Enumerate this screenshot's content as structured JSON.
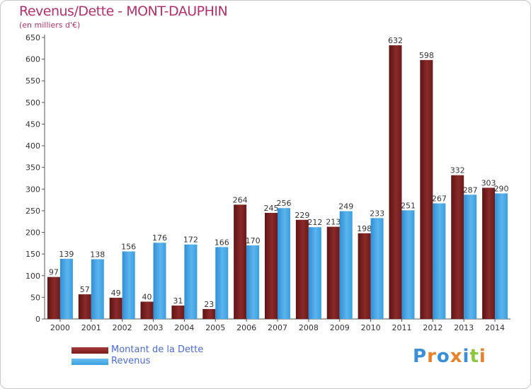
{
  "header": {
    "title": "Revenus/Dette - MONT-DAUPHIN",
    "subtitle": "(en milliers d'€)"
  },
  "legend": {
    "items": [
      {
        "label": "Montant de la Dette",
        "color": "#7a1c1c"
      },
      {
        "label": "Revenus",
        "color": "#3a9ee0"
      }
    ]
  },
  "logo": {
    "text": "Proxiti",
    "colors": [
      "#3a8fd8",
      "#e8822a",
      "#3a8fd8",
      "#e8822a",
      "#3a8fd8",
      "#8cc63f",
      "#e8822a"
    ]
  },
  "chart_data": {
    "type": "bar",
    "title": "Revenus/Dette - MONT-DAUPHIN",
    "subtitle": "(en milliers d'€)",
    "categories": [
      "2000",
      "2001",
      "2002",
      "2003",
      "2004",
      "2005",
      "2006",
      "2007",
      "2008",
      "2009",
      "2010",
      "2011",
      "2012",
      "2013",
      "2014"
    ],
    "series": [
      {
        "name": "Montant de la Dette",
        "color": "#7a1c1c",
        "values": [
          97,
          57,
          49,
          40,
          31,
          23,
          264,
          245,
          229,
          213,
          198,
          632,
          598,
          332,
          303
        ]
      },
      {
        "name": "Revenus",
        "color": "#3a9ee0",
        "values": [
          139,
          138,
          156,
          176,
          172,
          166,
          170,
          256,
          212,
          249,
          233,
          251,
          267,
          287,
          290
        ]
      }
    ],
    "ylim": [
      0,
      650
    ],
    "yticks": [
      0,
      50,
      100,
      150,
      200,
      250,
      300,
      350,
      400,
      450,
      500,
      550,
      600,
      650
    ],
    "grid": false,
    "legend_position": "bottom-left"
  }
}
